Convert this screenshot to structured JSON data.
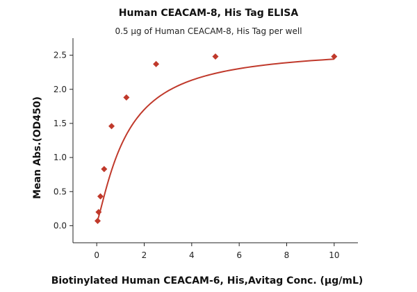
{
  "chart_data": {
    "type": "scatter",
    "title": "Human CEACAM-8, His Tag ELISA",
    "subtitle": "0.5 μg of Human CEACAM-8, His Tag per well",
    "xlabel": "Biotinylated Human CEACAM-6, His,Avitag Conc. (μg/mL)",
    "ylabel": "Mean Abs.(OD450)",
    "xlim": [
      -1,
      11
    ],
    "ylim": [
      -0.25,
      2.75
    ],
    "xticks": [
      0,
      2,
      4,
      6,
      8,
      10
    ],
    "yticks": [
      0.0,
      0.5,
      1.0,
      1.5,
      2.0,
      2.5
    ],
    "xtick_labels": [
      "0",
      "2",
      "4",
      "6",
      "8",
      "10"
    ],
    "ytick_labels": [
      "0.0",
      "0.5",
      "1.0",
      "1.5",
      "2.0",
      "2.5"
    ],
    "grid": false,
    "legend": "none",
    "series": [
      {
        "x": [
          0.039,
          0.078,
          0.156,
          0.3125,
          0.625,
          1.25,
          2.5,
          5,
          10
        ],
        "y": [
          0.07,
          0.2,
          0.43,
          0.83,
          1.46,
          1.88,
          2.37,
          2.48,
          2.48
        ],
        "color": "#c0392b",
        "marker": "diamond",
        "fit": "4PL"
      }
    ]
  }
}
